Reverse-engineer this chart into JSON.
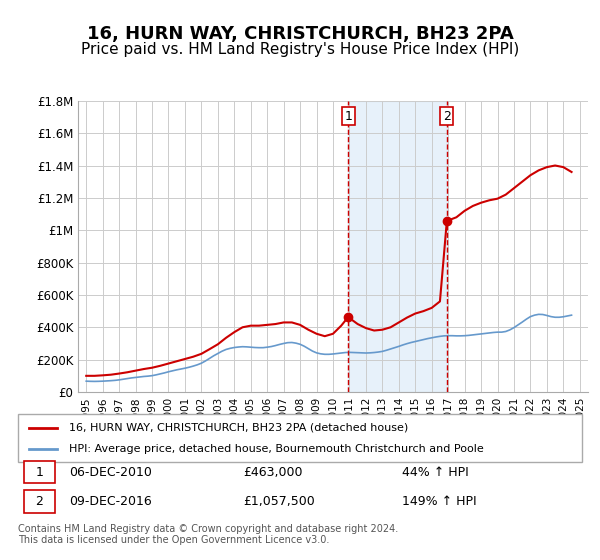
{
  "title": "16, HURN WAY, CHRISTCHURCH, BH23 2PA",
  "subtitle": "Price paid vs. HM Land Registry's House Price Index (HPI)",
  "title_fontsize": 13,
  "subtitle_fontsize": 11,
  "background_color": "#ffffff",
  "plot_bg_color": "#ffffff",
  "grid_color": "#cccccc",
  "ylim": [
    0,
    1800000
  ],
  "yticks": [
    0,
    200000,
    400000,
    600000,
    800000,
    1000000,
    1200000,
    1400000,
    1600000,
    1800000
  ],
  "ytick_labels": [
    "£0",
    "£200K",
    "£400K",
    "£600K",
    "£800K",
    "£1M",
    "£1.2M",
    "£1.4M",
    "£1.6M",
    "£1.8M"
  ],
  "sale1_date": 2010.92,
  "sale1_price": 463000,
  "sale1_label": "06-DEC-2010",
  "sale1_pct": "44% ↑ HPI",
  "sale2_date": 2016.92,
  "sale2_price": 1057500,
  "sale2_label": "09-DEC-2016",
  "sale2_pct": "149% ↑ HPI",
  "red_line_color": "#cc0000",
  "blue_line_color": "#6699cc",
  "shade_color": "#d0e4f7",
  "dashed_color": "#cc0000",
  "legend1": "16, HURN WAY, CHRISTCHURCH, BH23 2PA (detached house)",
  "legend2": "HPI: Average price, detached house, Bournemouth Christchurch and Poole",
  "footnote": "Contains HM Land Registry data © Crown copyright and database right 2024.\nThis data is licensed under the Open Government Licence v3.0.",
  "hpi_years": [
    1995.0,
    1995.25,
    1995.5,
    1995.75,
    1996.0,
    1996.25,
    1996.5,
    1996.75,
    1997.0,
    1997.25,
    1997.5,
    1997.75,
    1998.0,
    1998.25,
    1998.5,
    1998.75,
    1999.0,
    1999.25,
    1999.5,
    1999.75,
    2000.0,
    2000.25,
    2000.5,
    2000.75,
    2001.0,
    2001.25,
    2001.5,
    2001.75,
    2002.0,
    2002.25,
    2002.5,
    2002.75,
    2003.0,
    2003.25,
    2003.5,
    2003.75,
    2004.0,
    2004.25,
    2004.5,
    2004.75,
    2005.0,
    2005.25,
    2005.5,
    2005.75,
    2006.0,
    2006.25,
    2006.5,
    2006.75,
    2007.0,
    2007.25,
    2007.5,
    2007.75,
    2008.0,
    2008.25,
    2008.5,
    2008.75,
    2009.0,
    2009.25,
    2009.5,
    2009.75,
    2010.0,
    2010.25,
    2010.5,
    2010.75,
    2011.0,
    2011.25,
    2011.5,
    2011.75,
    2012.0,
    2012.25,
    2012.5,
    2012.75,
    2013.0,
    2013.25,
    2013.5,
    2013.75,
    2014.0,
    2014.25,
    2014.5,
    2014.75,
    2015.0,
    2015.25,
    2015.5,
    2015.75,
    2016.0,
    2016.25,
    2016.5,
    2016.75,
    2017.0,
    2017.25,
    2017.5,
    2017.75,
    2018.0,
    2018.25,
    2018.5,
    2018.75,
    2019.0,
    2019.25,
    2019.5,
    2019.75,
    2020.0,
    2020.25,
    2020.5,
    2020.75,
    2021.0,
    2021.25,
    2021.5,
    2021.75,
    2022.0,
    2022.25,
    2022.5,
    2022.75,
    2023.0,
    2023.25,
    2023.5,
    2023.75,
    2024.0,
    2024.25,
    2024.5
  ],
  "hpi_values": [
    67000,
    66000,
    65500,
    66000,
    67000,
    68500,
    70000,
    72000,
    75000,
    79000,
    83000,
    87000,
    90000,
    93000,
    96000,
    98000,
    101000,
    106000,
    112000,
    118000,
    125000,
    131000,
    137000,
    142000,
    147000,
    153000,
    160000,
    168000,
    178000,
    192000,
    208000,
    224000,
    238000,
    252000,
    263000,
    270000,
    275000,
    278000,
    280000,
    279000,
    277000,
    275000,
    274000,
    274000,
    277000,
    281000,
    287000,
    294000,
    300000,
    305000,
    306000,
    302000,
    295000,
    283000,
    268000,
    253000,
    242000,
    236000,
    233000,
    233000,
    235000,
    238000,
    241000,
    244000,
    245000,
    244000,
    243000,
    242000,
    241000,
    242000,
    244000,
    247000,
    251000,
    258000,
    266000,
    274000,
    282000,
    291000,
    299000,
    306000,
    312000,
    318000,
    324000,
    330000,
    335000,
    340000,
    344000,
    347000,
    348000,
    348000,
    347000,
    347000,
    348000,
    350000,
    353000,
    356000,
    359000,
    362000,
    365000,
    368000,
    370000,
    370000,
    374000,
    384000,
    398000,
    415000,
    432000,
    450000,
    466000,
    475000,
    480000,
    479000,
    473000,
    466000,
    462000,
    462000,
    465000,
    470000,
    475000
  ],
  "red_years": [
    1995.0,
    1995.5,
    1996.0,
    1996.5,
    1997.0,
    1997.5,
    1998.0,
    1998.5,
    1999.0,
    1999.5,
    2000.0,
    2000.5,
    2001.0,
    2001.5,
    2002.0,
    2002.5,
    2003.0,
    2003.5,
    2004.0,
    2004.5,
    2005.0,
    2005.5,
    2006.0,
    2006.5,
    2007.0,
    2007.5,
    2008.0,
    2008.5,
    2009.0,
    2009.5,
    2010.0,
    2010.5,
    2010.92,
    2011.5,
    2012.0,
    2012.5,
    2013.0,
    2013.5,
    2014.0,
    2014.5,
    2015.0,
    2015.5,
    2016.0,
    2016.5,
    2016.92,
    2017.5,
    2018.0,
    2018.5,
    2019.0,
    2019.5,
    2020.0,
    2020.5,
    2021.0,
    2021.5,
    2022.0,
    2022.5,
    2023.0,
    2023.5,
    2024.0,
    2024.5
  ],
  "red_values": [
    100000,
    100000,
    103000,
    107000,
    114000,
    122000,
    132000,
    142000,
    150000,
    162000,
    176000,
    190000,
    204000,
    218000,
    236000,
    265000,
    295000,
    335000,
    370000,
    400000,
    410000,
    410000,
    415000,
    420000,
    430000,
    430000,
    415000,
    385000,
    360000,
    345000,
    360000,
    410000,
    463000,
    420000,
    395000,
    380000,
    385000,
    400000,
    430000,
    460000,
    485000,
    500000,
    520000,
    560000,
    1057500,
    1080000,
    1120000,
    1150000,
    1170000,
    1185000,
    1195000,
    1220000,
    1260000,
    1300000,
    1340000,
    1370000,
    1390000,
    1400000,
    1390000,
    1360000
  ]
}
